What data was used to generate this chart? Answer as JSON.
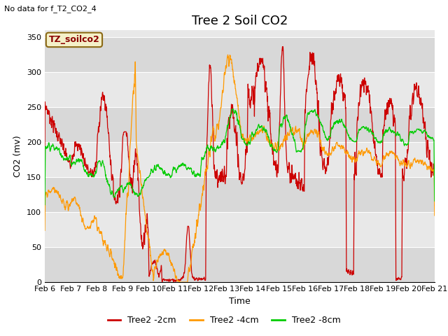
{
  "title": "Tree 2 Soil CO2",
  "subtitle": "No data for f_T2_CO2_4",
  "ylabel": "CO2 (mv)",
  "xlabel": "Time",
  "ylim": [
    0,
    360
  ],
  "yticks": [
    0,
    50,
    100,
    150,
    200,
    250,
    300,
    350
  ],
  "xlim": [
    0,
    15
  ],
  "xtick_labels": [
    "Feb 6",
    "Feb 7",
    "Feb 8",
    "Feb 9",
    "Feb 10",
    "Feb 11",
    "Feb 12",
    "Feb 13",
    "Feb 14",
    "Feb 15",
    "Feb 16",
    "Feb 17",
    "Feb 18",
    "Feb 19",
    "Feb 20",
    "Feb 21"
  ],
  "legend_label_box": "TZ_soilco2",
  "line_colors": [
    "#cc0000",
    "#ff9900",
    "#00cc00"
  ],
  "line_labels": [
    "Tree2 -2cm",
    "Tree2 -4cm",
    "Tree2 -8cm"
  ],
  "bg_color": "#ffffff",
  "plot_bg_color": "#e8e8e8",
  "grid_color": "#ffffff",
  "title_fontsize": 13,
  "axis_fontsize": 9,
  "tick_fontsize": 8
}
